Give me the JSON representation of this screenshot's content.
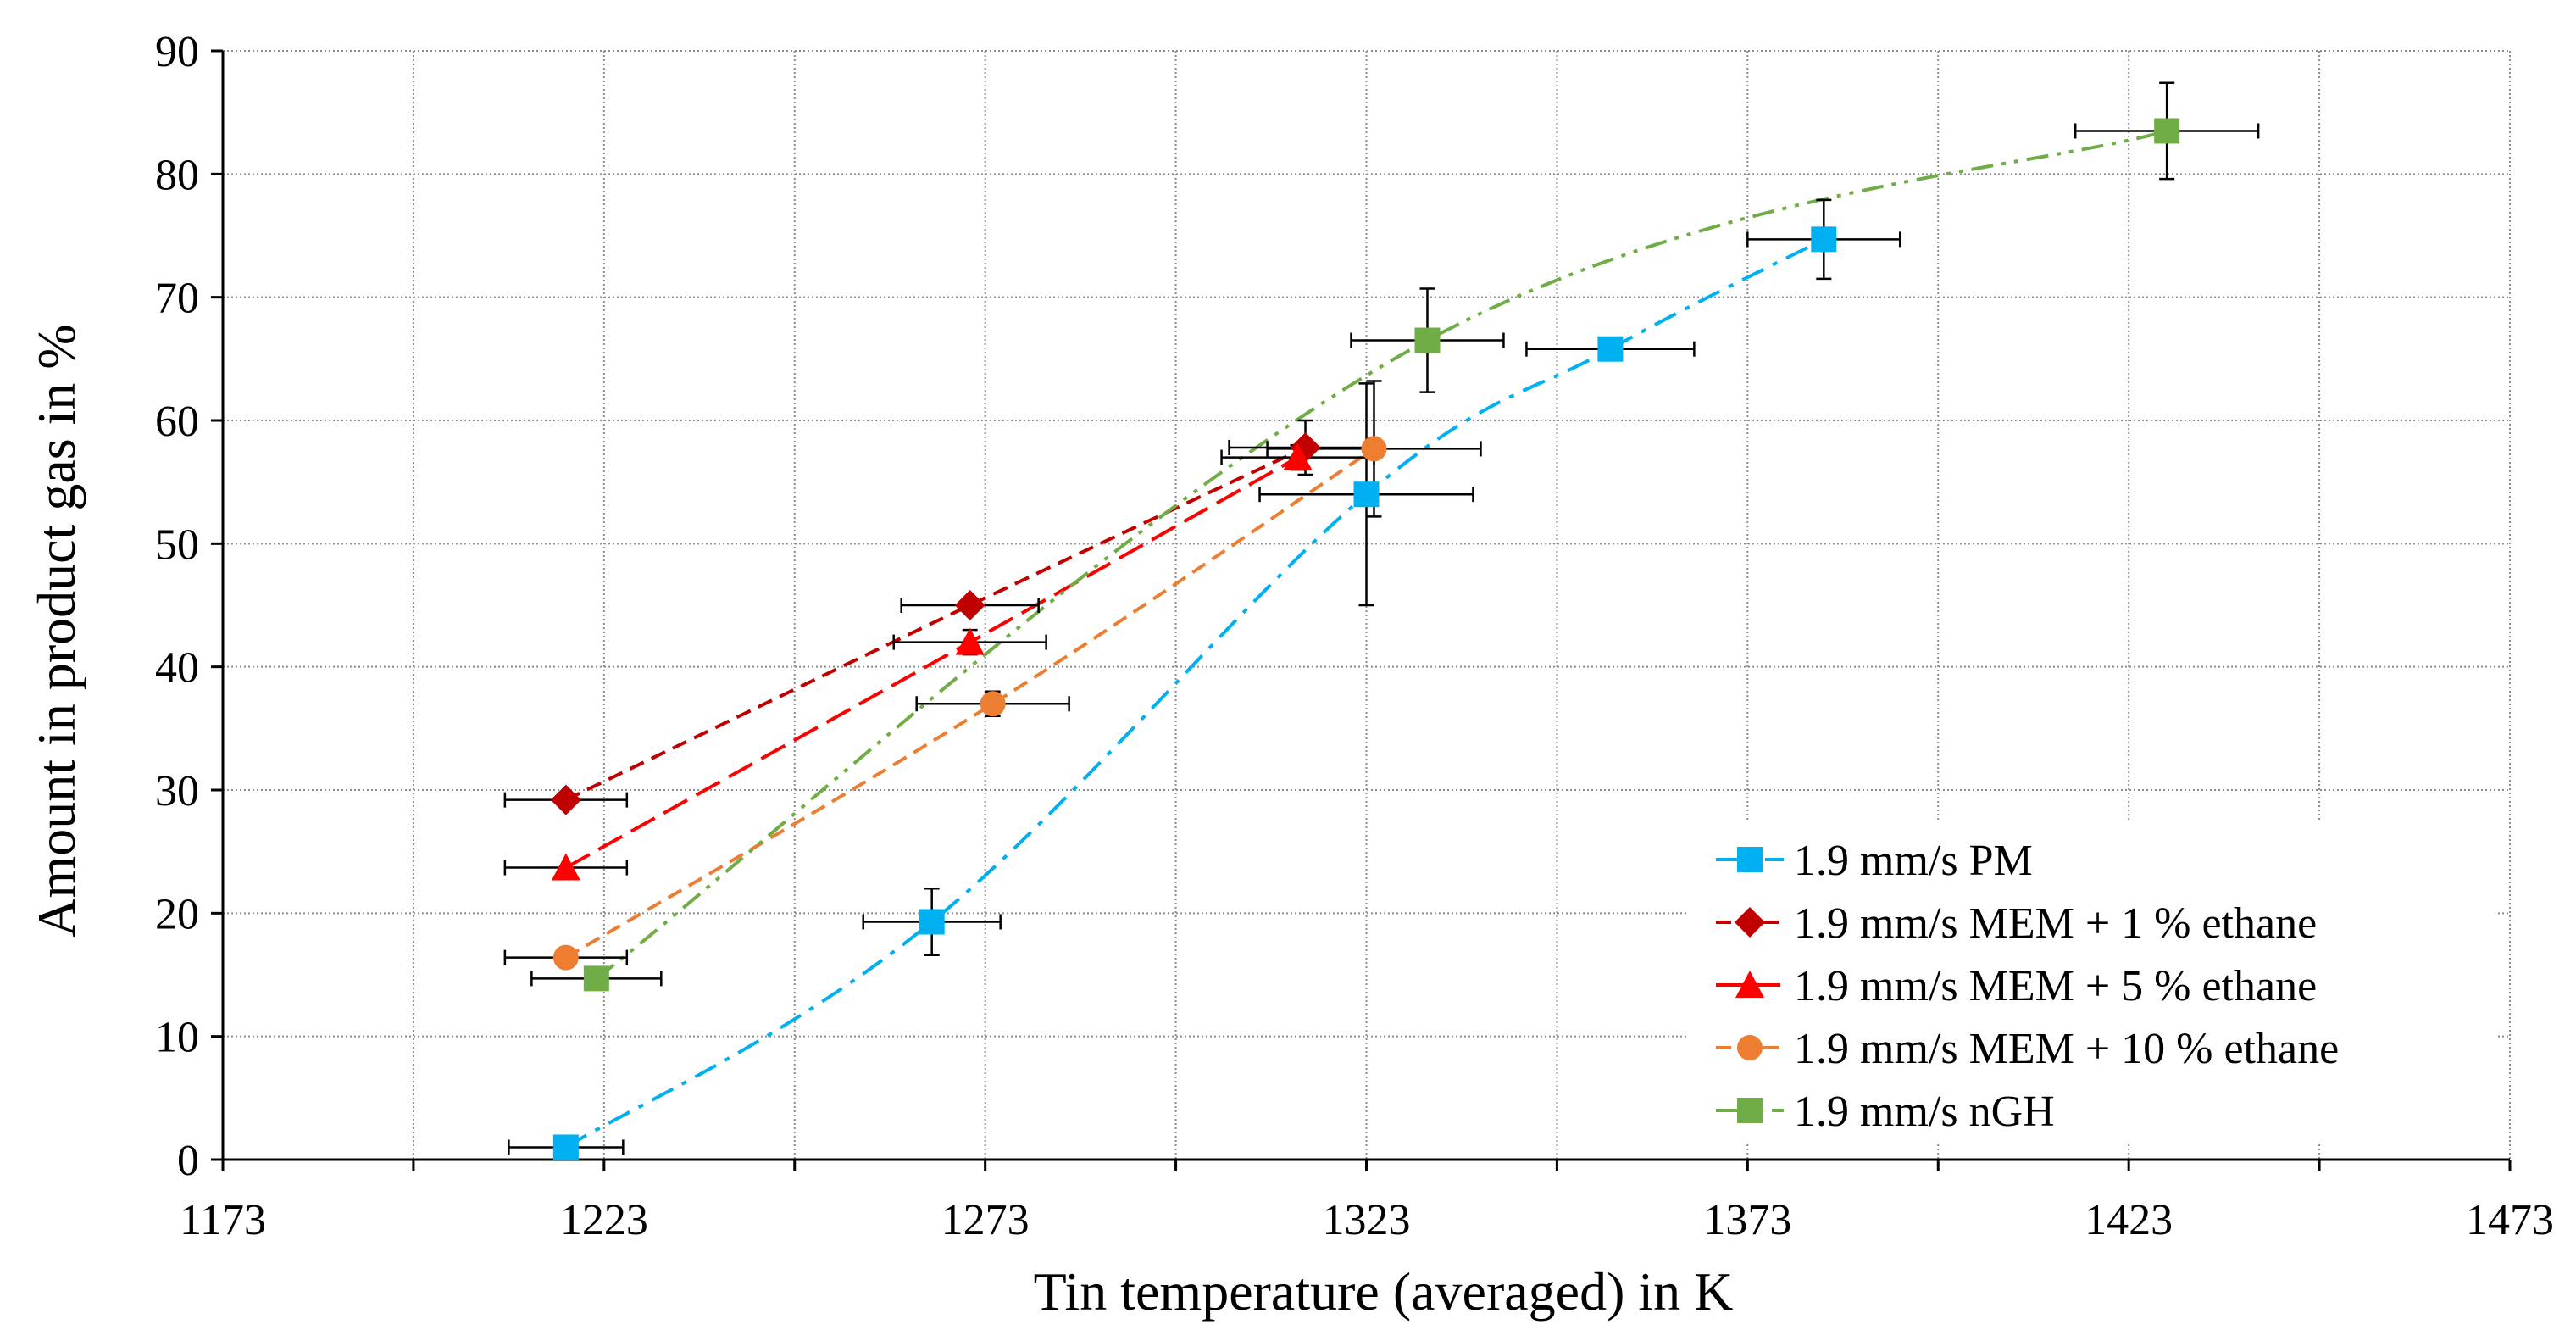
{
  "chart_data": {
    "type": "scatter",
    "title": "",
    "xlabel": "Tin temperature (averaged) in K",
    "ylabel": "Amount in product gas in %",
    "xlim": [
      1173,
      1473
    ],
    "ylim": [
      0,
      90
    ],
    "x_ticks": [
      "1173",
      "1223",
      "1273",
      "1323",
      "1373",
      "1423",
      "1473"
    ],
    "y_ticks": [
      "0",
      "10",
      "20",
      "30",
      "40",
      "50",
      "60",
      "70",
      "80",
      "90"
    ],
    "grid": true,
    "legend_position": "bottom-right",
    "series": [
      {
        "name": "1.9 mm/s PM",
        "color": "#00B0F0",
        "marker": "square",
        "line_style": "dash-dot",
        "points": [
          {
            "x": 1218,
            "y": 1.0,
            "xerr": 7.5,
            "yerr": 0
          },
          {
            "x": 1266,
            "y": 19.3,
            "xerr": 9,
            "yerr": 2.7
          },
          {
            "x": 1323,
            "y": 54.0,
            "xerr": 14,
            "yerr": 9
          },
          {
            "x": 1355,
            "y": 65.8,
            "xerr": 11,
            "yerr": 0
          },
          {
            "x": 1383,
            "y": 74.7,
            "xerr": 10,
            "yerr": 3.2
          }
        ]
      },
      {
        "name": "1.9 mm/s MEM + 1 % ethane",
        "color": "#C00000",
        "marker": "diamond",
        "line_style": "dash",
        "points": [
          {
            "x": 1218,
            "y": 29.2,
            "xerr": 8,
            "yerr": 0
          },
          {
            "x": 1271,
            "y": 45.0,
            "xerr": 9,
            "yerr": 0
          },
          {
            "x": 1315,
            "y": 57.8,
            "xerr": 10,
            "yerr": 2.2
          }
        ]
      },
      {
        "name": "1.9 mm/s MEM + 5 % ethane",
        "color": "#FF0000",
        "marker": "triangle",
        "line_style": "long-dash",
        "points": [
          {
            "x": 1218,
            "y": 23.7,
            "xerr": 8,
            "yerr": 0
          },
          {
            "x": 1271,
            "y": 42.0,
            "xerr": 10,
            "yerr": 1.0
          },
          {
            "x": 1314,
            "y": 57.0,
            "xerr": 10,
            "yerr": 1.0
          }
        ]
      },
      {
        "name": "1.9 mm/s MEM + 10 % ethane",
        "color": "#ED7D31",
        "marker": "circle",
        "line_style": "dash",
        "points": [
          {
            "x": 1218,
            "y": 16.4,
            "xerr": 8,
            "yerr": 0
          },
          {
            "x": 1274,
            "y": 37.0,
            "xerr": 10,
            "yerr": 1.0
          },
          {
            "x": 1324,
            "y": 57.7,
            "xerr": 14,
            "yerr": 5.5
          }
        ]
      },
      {
        "name": "1.9 mm/s nGH",
        "color": "#70AD47",
        "marker": "square",
        "line_style": "dash-dot-dot",
        "points": [
          {
            "x": 1222,
            "y": 14.7,
            "xerr": 8.5,
            "yerr": 0
          },
          {
            "x": 1331,
            "y": 66.5,
            "xerr": 10,
            "yerr": 4.2
          },
          {
            "x": 1428,
            "y": 83.5,
            "xerr": 12,
            "yerr": 3.9
          }
        ]
      }
    ]
  }
}
